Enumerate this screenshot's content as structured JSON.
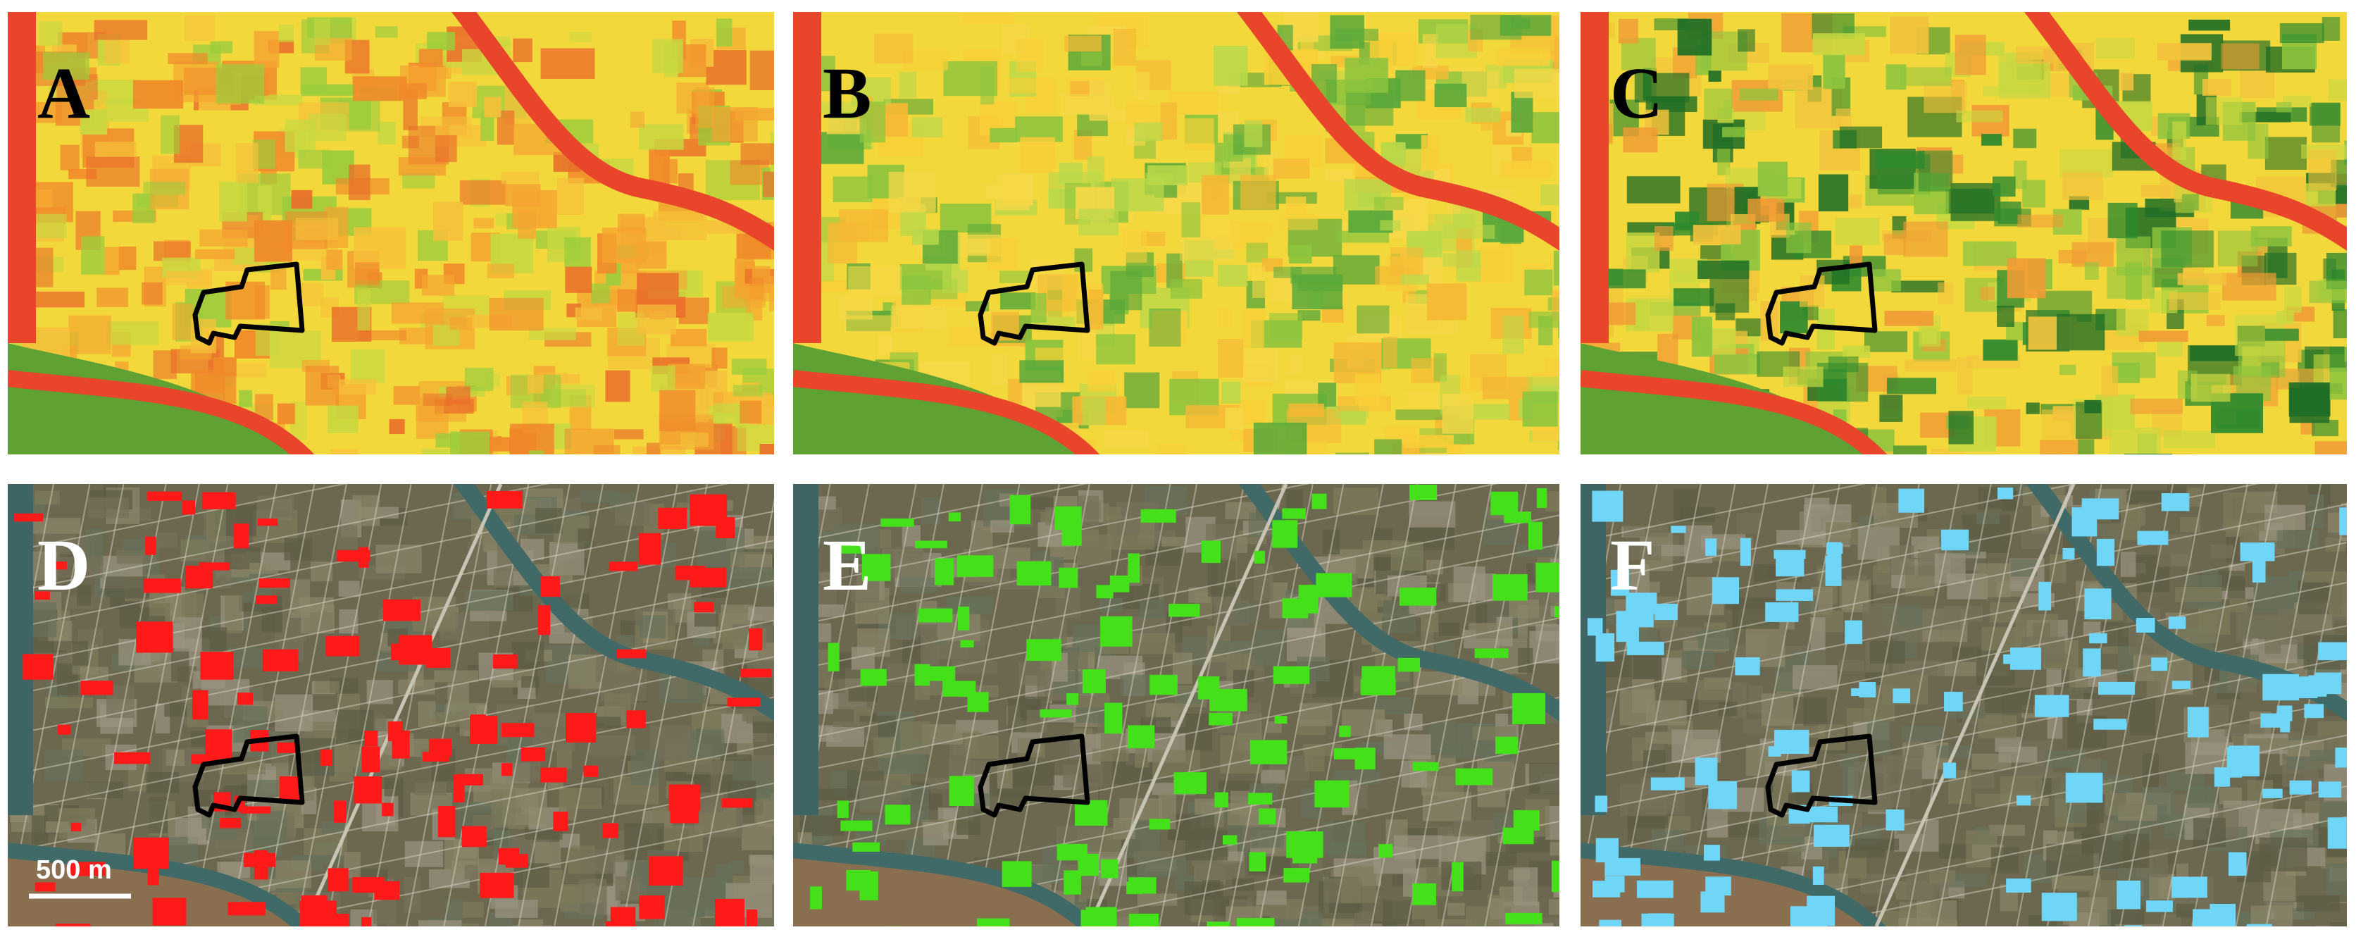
{
  "panels": [
    {
      "label": "A"
    },
    {
      "label": "B"
    },
    {
      "label": "C"
    },
    {
      "label": "D"
    },
    {
      "label": "E"
    },
    {
      "label": "F"
    }
  ],
  "scale_bar": "500 m"
}
